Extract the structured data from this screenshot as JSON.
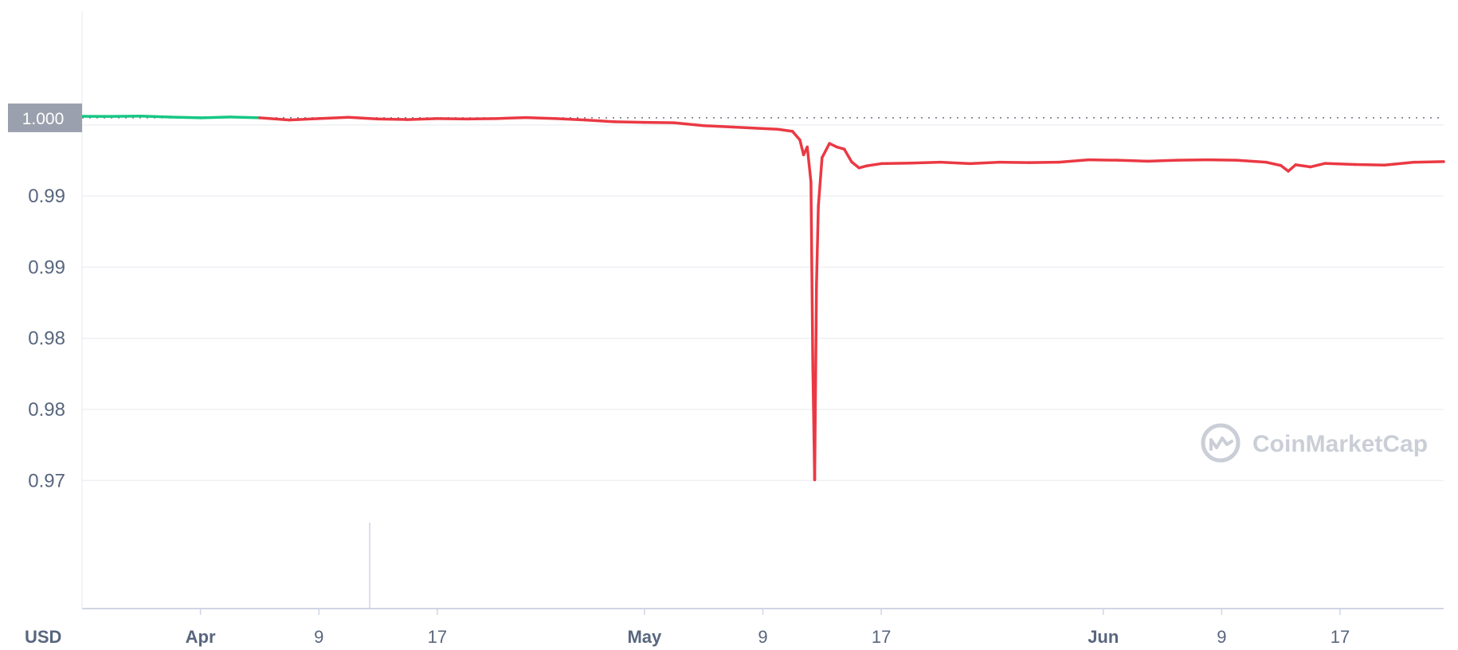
{
  "chart_data": {
    "type": "line",
    "unit_label": "USD",
    "reference_label": "1.000",
    "reference_value": 1.0,
    "ylim": [
      0.9655,
      1.0075
    ],
    "y_ticks": [
      {
        "label": "1.00",
        "value": 0.9995
      },
      {
        "label": "0.99",
        "value": 0.9945
      },
      {
        "label": "0.99",
        "value": 0.9895
      },
      {
        "label": "0.98",
        "value": 0.9845
      },
      {
        "label": "0.98",
        "value": 0.9795
      },
      {
        "label": "0.97",
        "value": 0.9745
      }
    ],
    "x_range": [
      "2022-03-24",
      "2022-06-24"
    ],
    "x_ticks": [
      {
        "label": "Apr",
        "date": "2022-04-01",
        "month": true
      },
      {
        "label": "9",
        "date": "2022-04-09",
        "month": false
      },
      {
        "label": "17",
        "date": "2022-04-17",
        "month": false
      },
      {
        "label": "May",
        "date": "2022-05-01",
        "month": true
      },
      {
        "label": "9",
        "date": "2022-05-09",
        "month": false
      },
      {
        "label": "17",
        "date": "2022-05-17",
        "month": false
      },
      {
        "label": "Jun",
        "date": "2022-06-01",
        "month": true
      },
      {
        "label": "9",
        "date": "2022-06-09",
        "month": false
      },
      {
        "label": "17",
        "date": "2022-06-17",
        "month": false
      }
    ],
    "grid": true,
    "series": [
      {
        "color_above": "#16c784",
        "color_below": "#ea3943",
        "points": [
          [
            "2022-03-24",
            1.00011
          ],
          [
            "2022-03-26",
            1.0001
          ],
          [
            "2022-03-28",
            1.00012
          ],
          [
            "2022-03-30",
            1.00005
          ],
          [
            "2022-04-01",
            1.0
          ],
          [
            "2022-04-03",
            1.00006
          ],
          [
            "2022-04-05",
            1.0
          ],
          [
            "2022-04-07",
            0.99985
          ],
          [
            "2022-04-09",
            0.99995
          ],
          [
            "2022-04-11",
            1.00004
          ],
          [
            "2022-04-13",
            0.99992
          ],
          [
            "2022-04-15",
            0.99988
          ],
          [
            "2022-04-17",
            0.99995
          ],
          [
            "2022-04-19",
            0.99992
          ],
          [
            "2022-04-21",
            0.99995
          ],
          [
            "2022-04-23",
            1.00002
          ],
          [
            "2022-04-25",
            0.99995
          ],
          [
            "2022-04-27",
            0.99985
          ],
          [
            "2022-04-29",
            0.99972
          ],
          [
            "2022-05-01",
            0.99968
          ],
          [
            "2022-05-03",
            0.99965
          ],
          [
            "2022-05-05",
            0.99945
          ],
          [
            "2022-05-07",
            0.99935
          ],
          [
            "2022-05-09",
            0.99925
          ],
          [
            "2022-05-10",
            0.9992
          ],
          [
            "2022-05-11",
            0.99905
          ],
          [
            "2022-05-11T12",
            0.99845
          ],
          [
            "2022-05-11T18",
            0.9974
          ],
          [
            "2022-05-12",
            0.99795
          ],
          [
            "2022-05-12T06",
            0.9955
          ],
          [
            "2022-05-12T09",
            0.9826
          ],
          [
            "2022-05-12T12",
            0.97455
          ],
          [
            "2022-05-12T15",
            0.9883
          ],
          [
            "2022-05-12T18",
            0.9938
          ],
          [
            "2022-05-13",
            0.9972
          ],
          [
            "2022-05-13T12",
            0.9982
          ],
          [
            "2022-05-14",
            0.99795
          ],
          [
            "2022-05-14T12",
            0.9978
          ],
          [
            "2022-05-15",
            0.9969
          ],
          [
            "2022-05-15T12",
            0.99648
          ],
          [
            "2022-05-16",
            0.99662
          ],
          [
            "2022-05-17",
            0.99678
          ],
          [
            "2022-05-19",
            0.99682
          ],
          [
            "2022-05-21",
            0.99688
          ],
          [
            "2022-05-23",
            0.99678
          ],
          [
            "2022-05-25",
            0.99688
          ],
          [
            "2022-05-27",
            0.99685
          ],
          [
            "2022-05-29",
            0.99688
          ],
          [
            "2022-05-31",
            0.99705
          ],
          [
            "2022-06-02",
            0.99702
          ],
          [
            "2022-06-04",
            0.99695
          ],
          [
            "2022-06-06",
            0.99702
          ],
          [
            "2022-06-08",
            0.99705
          ],
          [
            "2022-06-10",
            0.99702
          ],
          [
            "2022-06-12",
            0.99688
          ],
          [
            "2022-06-13",
            0.99665
          ],
          [
            "2022-06-13T12",
            0.99625
          ],
          [
            "2022-06-14",
            0.9967
          ],
          [
            "2022-06-15",
            0.99655
          ],
          [
            "2022-06-16",
            0.9968
          ],
          [
            "2022-06-18",
            0.99672
          ],
          [
            "2022-06-20",
            0.99668
          ],
          [
            "2022-06-22",
            0.99688
          ],
          [
            "2022-06-24",
            0.99692
          ]
        ]
      }
    ]
  },
  "watermark": {
    "text": "CoinMarketCap"
  }
}
